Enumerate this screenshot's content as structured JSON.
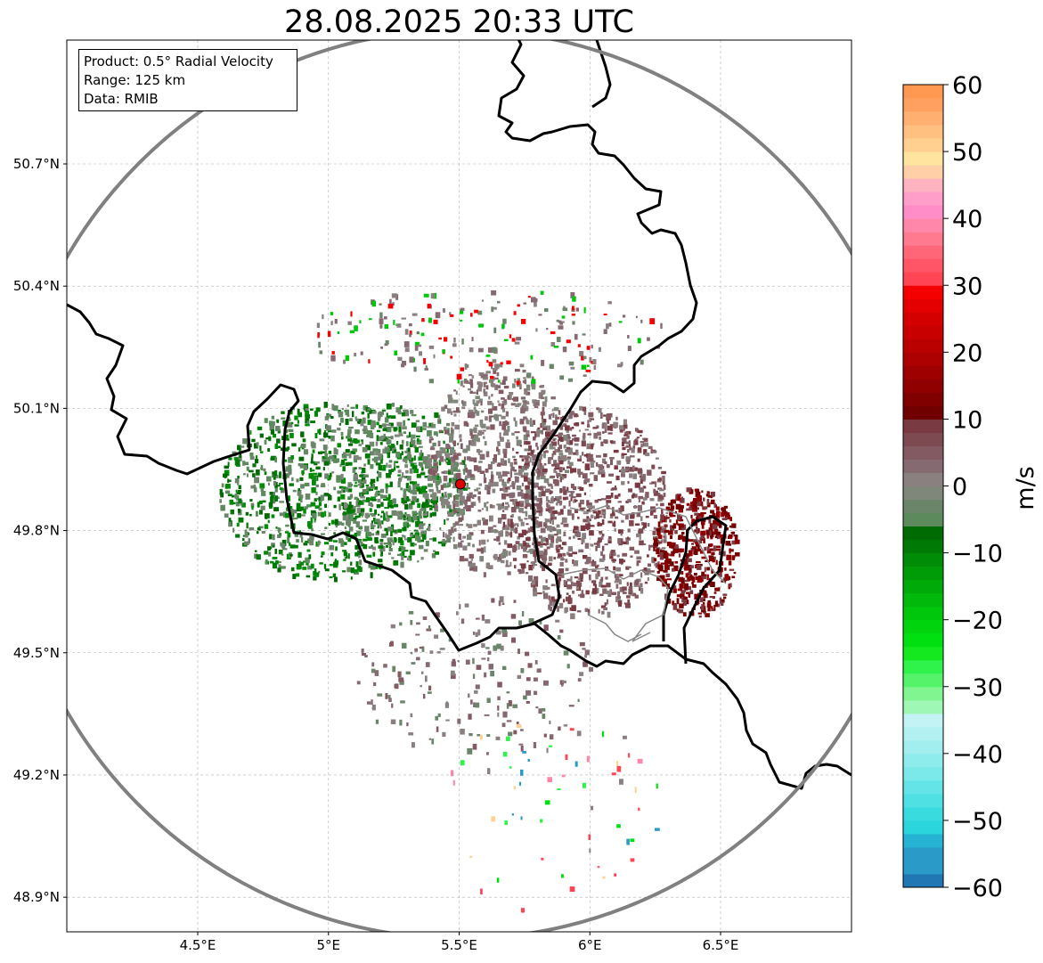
{
  "title": "28.08.2025 20:33 UTC",
  "info_box": {
    "product": "Product: 0.5° Radial Velocity",
    "range": "Range: 125 km",
    "data": "Data: RMIB"
  },
  "map": {
    "lon_range": [
      4.0,
      7.0
    ],
    "lat_range": [
      48.8,
      51.0
    ],
    "lon_ticks": [
      {
        "value": 4.5,
        "label": "4.5°E"
      },
      {
        "value": 5.0,
        "label": "5°E"
      },
      {
        "value": 5.5,
        "label": "5.5°E"
      },
      {
        "value": 6.0,
        "label": "6°E"
      },
      {
        "value": 6.5,
        "label": "6.5°E"
      }
    ],
    "lat_ticks": [
      {
        "value": 50.7,
        "label": "50.7°N"
      },
      {
        "value": 50.4,
        "label": "50.4°N"
      },
      {
        "value": 50.1,
        "label": "50.1°N"
      },
      {
        "value": 49.8,
        "label": "49.8°N"
      },
      {
        "value": 49.5,
        "label": "49.5°N"
      },
      {
        "value": 49.2,
        "label": "49.2°N"
      },
      {
        "value": 48.9,
        "label": "48.9°N"
      }
    ],
    "grid": true,
    "radar_site": {
      "lon": 5.505,
      "lat": 49.914,
      "color": "#e00000"
    },
    "range_ring_color": "#808080"
  },
  "colorbar": {
    "label": "m/s",
    "min": -60,
    "max": 60,
    "ticks": [
      {
        "value": 60,
        "label": "60"
      },
      {
        "value": 50,
        "label": "50"
      },
      {
        "value": 40,
        "label": "40"
      },
      {
        "value": 30,
        "label": "30"
      },
      {
        "value": 20,
        "label": "20"
      },
      {
        "value": 10,
        "label": "10"
      },
      {
        "value": 0,
        "label": "0"
      },
      {
        "value": -10,
        "label": "−10"
      },
      {
        "value": -20,
        "label": "−20"
      },
      {
        "value": -30,
        "label": "−30"
      },
      {
        "value": -40,
        "label": "−40"
      },
      {
        "value": -50,
        "label": "−50"
      },
      {
        "value": -60,
        "label": "−60"
      }
    ],
    "segments": [
      {
        "from": -60,
        "to": -58,
        "color": "#2077b4"
      },
      {
        "from": -58,
        "to": -54,
        "color": "#2a9bc9"
      },
      {
        "from": -54,
        "to": -52,
        "color": "#26b3d3"
      },
      {
        "from": -52,
        "to": -50,
        "color": "#2ad6dc"
      },
      {
        "from": -50,
        "to": -48,
        "color": "#3adbdf"
      },
      {
        "from": -48,
        "to": -46,
        "color": "#4ee0e2"
      },
      {
        "from": -46,
        "to": -44,
        "color": "#64e4e6"
      },
      {
        "from": -44,
        "to": -42,
        "color": "#7be8e9"
      },
      {
        "from": -42,
        "to": -40,
        "color": "#8fecec"
      },
      {
        "from": -40,
        "to": -38,
        "color": "#a2eeef"
      },
      {
        "from": -38,
        "to": -36,
        "color": "#b2f1f1"
      },
      {
        "from": -36,
        "to": -34,
        "color": "#c3f3f4"
      },
      {
        "from": -34,
        "to": -32,
        "color": "#9ff7b5"
      },
      {
        "from": -32,
        "to": -30,
        "color": "#80f590"
      },
      {
        "from": -30,
        "to": -28,
        "color": "#55f36a"
      },
      {
        "from": -28,
        "to": -26,
        "color": "#2ff24a"
      },
      {
        "from": -26,
        "to": -24,
        "color": "#14e81f"
      },
      {
        "from": -24,
        "to": -22,
        "color": "#00e010"
      },
      {
        "from": -22,
        "to": -20,
        "color": "#00d40d"
      },
      {
        "from": -20,
        "to": -18,
        "color": "#00c70c"
      },
      {
        "from": -18,
        "to": -16,
        "color": "#00b90a"
      },
      {
        "from": -16,
        "to": -14,
        "color": "#00ab09"
      },
      {
        "from": -14,
        "to": -12,
        "color": "#009c07"
      },
      {
        "from": -12,
        "to": -10,
        "color": "#008c06"
      },
      {
        "from": -10,
        "to": -8,
        "color": "#007a04"
      },
      {
        "from": -8,
        "to": -6,
        "color": "#006a03"
      },
      {
        "from": -6,
        "to": -4,
        "color": "#5c8a5c"
      },
      {
        "from": -4,
        "to": -2,
        "color": "#6b856b"
      },
      {
        "from": -2,
        "to": 0,
        "color": "#7e877a"
      },
      {
        "from": 0,
        "to": 2,
        "color": "#8a8080"
      },
      {
        "from": 2,
        "to": 4,
        "color": "#866a72"
      },
      {
        "from": 4,
        "to": 6,
        "color": "#835a62"
      },
      {
        "from": 6,
        "to": 8,
        "color": "#7e4a52"
      },
      {
        "from": 8,
        "to": 10,
        "color": "#7a3a42"
      },
      {
        "from": 10,
        "to": 12,
        "color": "#700000"
      },
      {
        "from": 12,
        "to": 14,
        "color": "#800000"
      },
      {
        "from": 14,
        "to": 16,
        "color": "#900000"
      },
      {
        "from": 16,
        "to": 18,
        "color": "#9e0000"
      },
      {
        "from": 18,
        "to": 20,
        "color": "#ad0000"
      },
      {
        "from": 20,
        "to": 22,
        "color": "#bb0000"
      },
      {
        "from": 22,
        "to": 24,
        "color": "#c80000"
      },
      {
        "from": 24,
        "to": 26,
        "color": "#d40000"
      },
      {
        "from": 26,
        "to": 28,
        "color": "#e40000"
      },
      {
        "from": 28,
        "to": 30,
        "color": "#f50000"
      },
      {
        "from": 30,
        "to": 32,
        "color": "#ff4455"
      },
      {
        "from": 32,
        "to": 34,
        "color": "#ff5566"
      },
      {
        "from": 34,
        "to": 36,
        "color": "#ff6677"
      },
      {
        "from": 36,
        "to": 38,
        "color": "#ff7a8e"
      },
      {
        "from": 38,
        "to": 40,
        "color": "#ff88aa"
      },
      {
        "from": 40,
        "to": 42,
        "color": "#ff8ec8"
      },
      {
        "from": 42,
        "to": 44,
        "color": "#ff9ec8"
      },
      {
        "from": 44,
        "to": 46,
        "color": "#ffb2c0"
      },
      {
        "from": 46,
        "to": 48,
        "color": "#ffd0a8"
      },
      {
        "from": 48,
        "to": 50,
        "color": "#ffe4a0"
      },
      {
        "from": 50,
        "to": 52,
        "color": "#ffd090"
      },
      {
        "from": 52,
        "to": 54,
        "color": "#ffc080"
      },
      {
        "from": 54,
        "to": 56,
        "color": "#ffb070"
      },
      {
        "from": 56,
        "to": 58,
        "color": "#ffa060"
      },
      {
        "from": 58,
        "to": 60,
        "color": "#ff9850"
      }
    ]
  },
  "echo_regions": [
    {
      "name": "inbound-west",
      "lon": 5.0,
      "lat": 49.9,
      "rlon": 0.42,
      "rlat": 0.22,
      "density": 900,
      "colors": [
        "#007a04",
        "#006a03",
        "#008c06",
        "#5c8a5c",
        "#6b856b"
      ]
    },
    {
      "name": "inbound-core",
      "lon": 5.28,
      "lat": 49.92,
      "rlon": 0.25,
      "rlat": 0.2,
      "density": 400,
      "colors": [
        "#6b856b",
        "#7e877a",
        "#5c8a5c",
        "#007a04"
      ]
    },
    {
      "name": "near-zero",
      "lon": 5.65,
      "lat": 49.95,
      "rlon": 0.28,
      "rlat": 0.26,
      "density": 700,
      "colors": [
        "#8a8080",
        "#7e877a",
        "#866a72",
        "#835a62"
      ]
    },
    {
      "name": "outbound-east",
      "lon": 5.98,
      "lat": 49.85,
      "rlon": 0.32,
      "rlat": 0.26,
      "density": 900,
      "colors": [
        "#7e4a52",
        "#835a62",
        "#866a72",
        "#7a3a42",
        "#8a8080"
      ]
    },
    {
      "name": "outbound-fast",
      "lon": 6.4,
      "lat": 49.75,
      "rlon": 0.16,
      "rlat": 0.16,
      "density": 450,
      "colors": [
        "#700000",
        "#800000",
        "#7a3a42",
        "#900000"
      ]
    },
    {
      "name": "scatter-north",
      "lon": 5.6,
      "lat": 50.28,
      "rlon": 0.7,
      "rlat": 0.12,
      "density": 220,
      "colors": [
        "#8a8080",
        "#866a72",
        "#6b856b",
        "#00c70c",
        "#f50000"
      ]
    },
    {
      "name": "scatter-south",
      "lon": 5.55,
      "lat": 49.45,
      "rlon": 0.45,
      "rlat": 0.2,
      "density": 200,
      "colors": [
        "#8a8080",
        "#866a72",
        "#835a62",
        "#6b856b"
      ]
    },
    {
      "name": "scatter-far",
      "lon": 5.85,
      "lat": 49.1,
      "rlon": 0.45,
      "rlat": 0.25,
      "density": 60,
      "colors": [
        "#00e010",
        "#2ff24a",
        "#ffd090",
        "#ff88aa",
        "#2a9bc9",
        "#8a8080",
        "#ff4455"
      ]
    }
  ]
}
